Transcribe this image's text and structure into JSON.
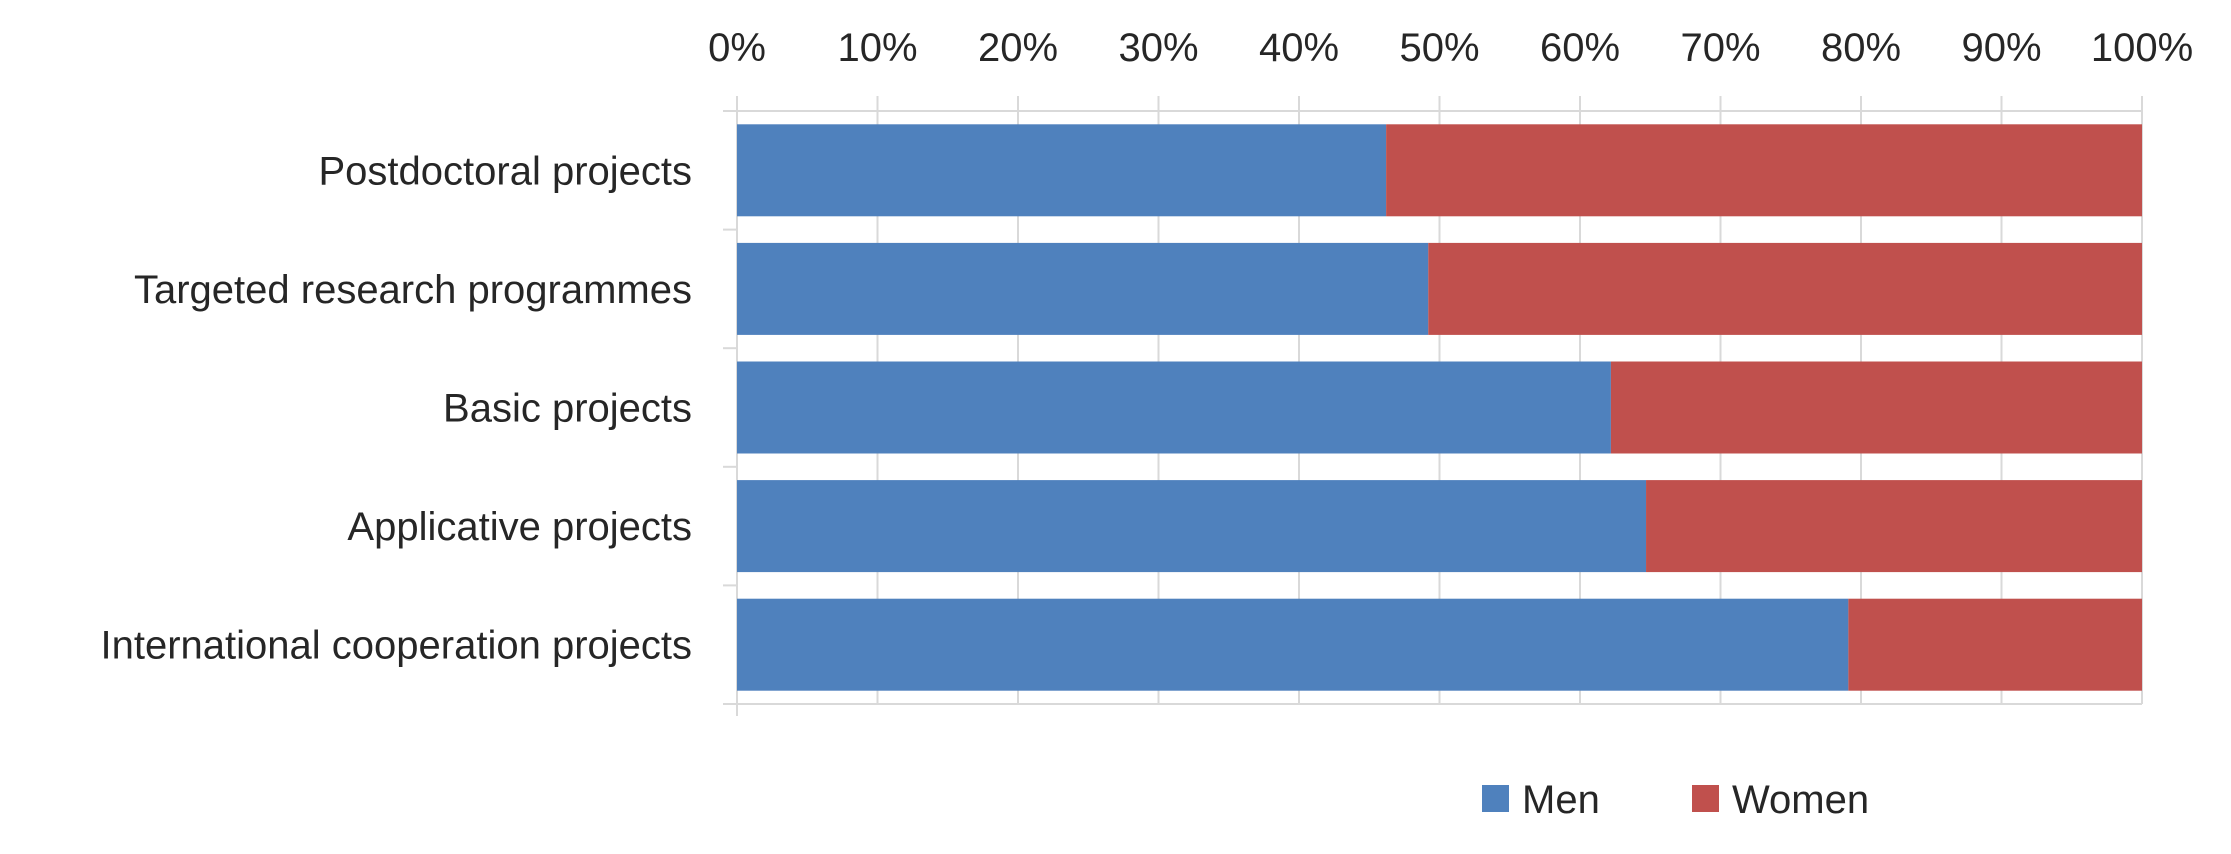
{
  "chart_data": {
    "type": "bar",
    "orientation": "horizontal",
    "stacked": "percent",
    "categories": [
      "Postdoctoral projects",
      "Targeted research programmes",
      "Basic projects",
      "Applicative projects",
      "International cooperation projects"
    ],
    "series": [
      {
        "name": "Men",
        "color": "#4f81bd",
        "values": [
          46.2,
          49.2,
          62.2,
          64.7,
          79.1
        ]
      },
      {
        "name": "Women",
        "color": "#c0504d",
        "values": [
          53.8,
          50.8,
          37.8,
          35.3,
          20.9
        ]
      }
    ],
    "x_ticks": [
      "0%",
      "10%",
      "20%",
      "30%",
      "40%",
      "50%",
      "60%",
      "70%",
      "80%",
      "90%",
      "100%"
    ],
    "xlim": [
      0,
      100
    ],
    "x_axis_position": "top",
    "grid": true,
    "legend": {
      "position": "bottom",
      "entries": [
        "Men",
        "Women"
      ]
    },
    "colors": {
      "gridline": "#d9d9d9",
      "text": "#262626"
    }
  }
}
